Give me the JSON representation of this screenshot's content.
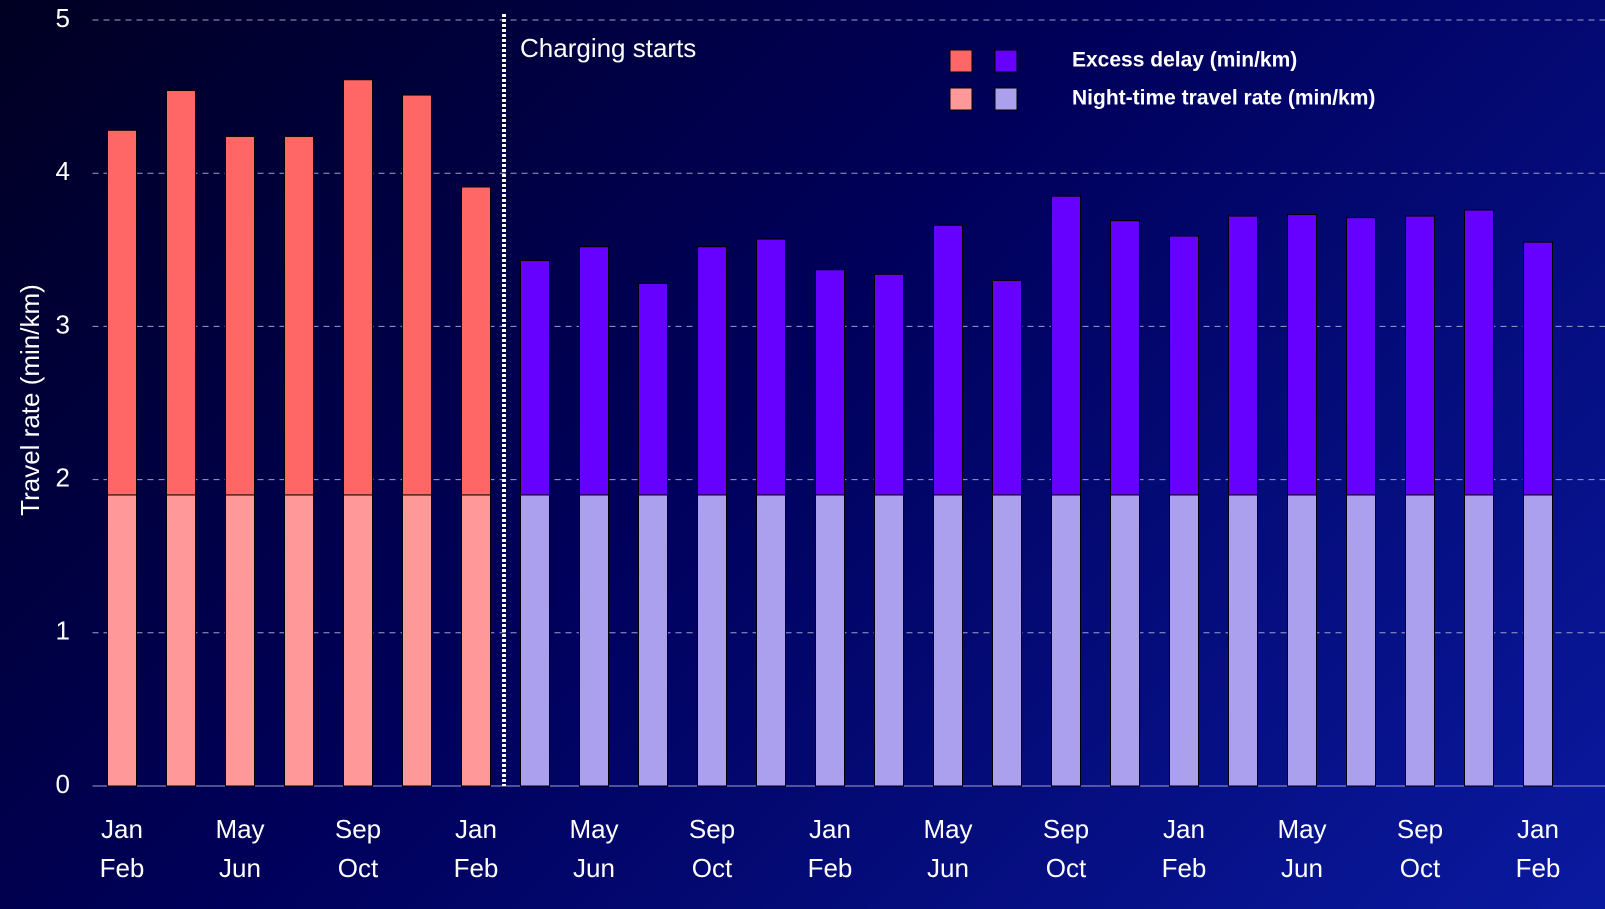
{
  "chart_data": {
    "type": "stacked_bar",
    "y_label": "Travel rate (min/km)",
    "categories": [
      [
        "Jan",
        "Feb"
      ],
      null,
      [
        "May",
        "Jun"
      ],
      null,
      [
        "Sep",
        "Oct"
      ],
      null,
      [
        "Jan",
        "Feb"
      ],
      null,
      [
        "May",
        "Jun"
      ],
      null,
      [
        "Sep",
        "Oct"
      ],
      null,
      [
        "Jan",
        "Feb"
      ],
      null,
      [
        "May",
        "Jun"
      ],
      null,
      [
        "Sep",
        "Oct"
      ],
      null,
      [
        "Jan",
        "Feb"
      ],
      null,
      [
        "May",
        "Jun"
      ],
      null,
      [
        "Sep",
        "Oct"
      ],
      null,
      [
        "Jan",
        "Feb"
      ]
    ],
    "series": [
      {
        "name": "Night-time travel rate (min/km)",
        "colors": [
          "#ff9999",
          "#aaa0ee"
        ],
        "values": [
          1.9,
          1.9,
          1.9,
          1.9,
          1.9,
          1.9,
          1.9,
          1.9,
          1.9,
          1.9,
          1.9,
          1.9,
          1.9,
          1.9,
          1.9,
          1.9,
          1.9,
          1.9,
          1.9,
          1.9,
          1.9,
          1.9,
          1.9,
          1.9,
          1.9
        ]
      },
      {
        "name": "Excess delay (min/km)",
        "colors": [
          "#ff6666",
          "#6600ff"
        ],
        "values": [
          2.38,
          2.64,
          2.34,
          2.34,
          2.71,
          2.61,
          2.01,
          1.53,
          1.62,
          1.38,
          1.62,
          1.67,
          1.47,
          1.44,
          1.76,
          1.4,
          1.95,
          1.79,
          1.69,
          1.82,
          1.83,
          1.81,
          1.82,
          1.86,
          1.65
        ]
      }
    ],
    "legend_order": [
      1,
      0
    ],
    "annotation": {
      "text": "Charging starts",
      "index": 7
    },
    "ylim": [
      0,
      5
    ],
    "yticks": [
      0,
      1,
      2,
      3,
      4,
      5
    ],
    "grid": true
  }
}
